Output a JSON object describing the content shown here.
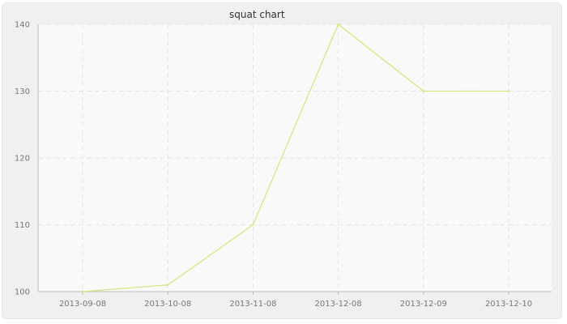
{
  "chart_data": {
    "type": "line",
    "title": "squat chart",
    "xlabel": "",
    "ylabel": "",
    "categories": [
      "2013-09-08",
      "2013-10-08",
      "2013-11-08",
      "2013-12-08",
      "2013-12-09",
      "2013-12-10"
    ],
    "series": [
      {
        "values": [
          100,
          101,
          110,
          140,
          130,
          130
        ],
        "color": "#d4e67a"
      }
    ],
    "ylim": [
      100,
      140
    ],
    "yticks": [
      100,
      110,
      120,
      130,
      140
    ],
    "grid": true,
    "legend": "none"
  }
}
